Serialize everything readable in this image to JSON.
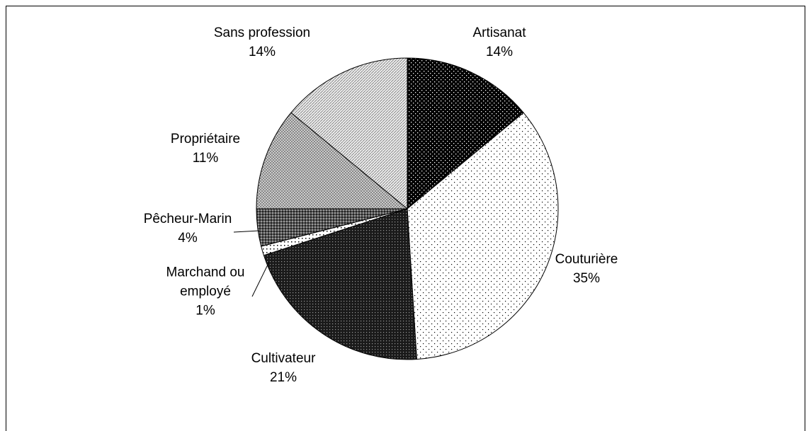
{
  "chart_data": {
    "type": "pie",
    "categories": [
      "Artisanat",
      "Couturière",
      "Cultivateur",
      "Marchand ou employé",
      "Pêcheur-Marin",
      "Propriétaire",
      "Sans profession"
    ],
    "values": [
      14,
      35,
      21,
      1,
      4,
      11,
      14
    ],
    "value_labels": [
      "14%",
      "35%",
      "21%",
      "1%",
      "4%",
      "11%",
      "14%"
    ]
  }
}
